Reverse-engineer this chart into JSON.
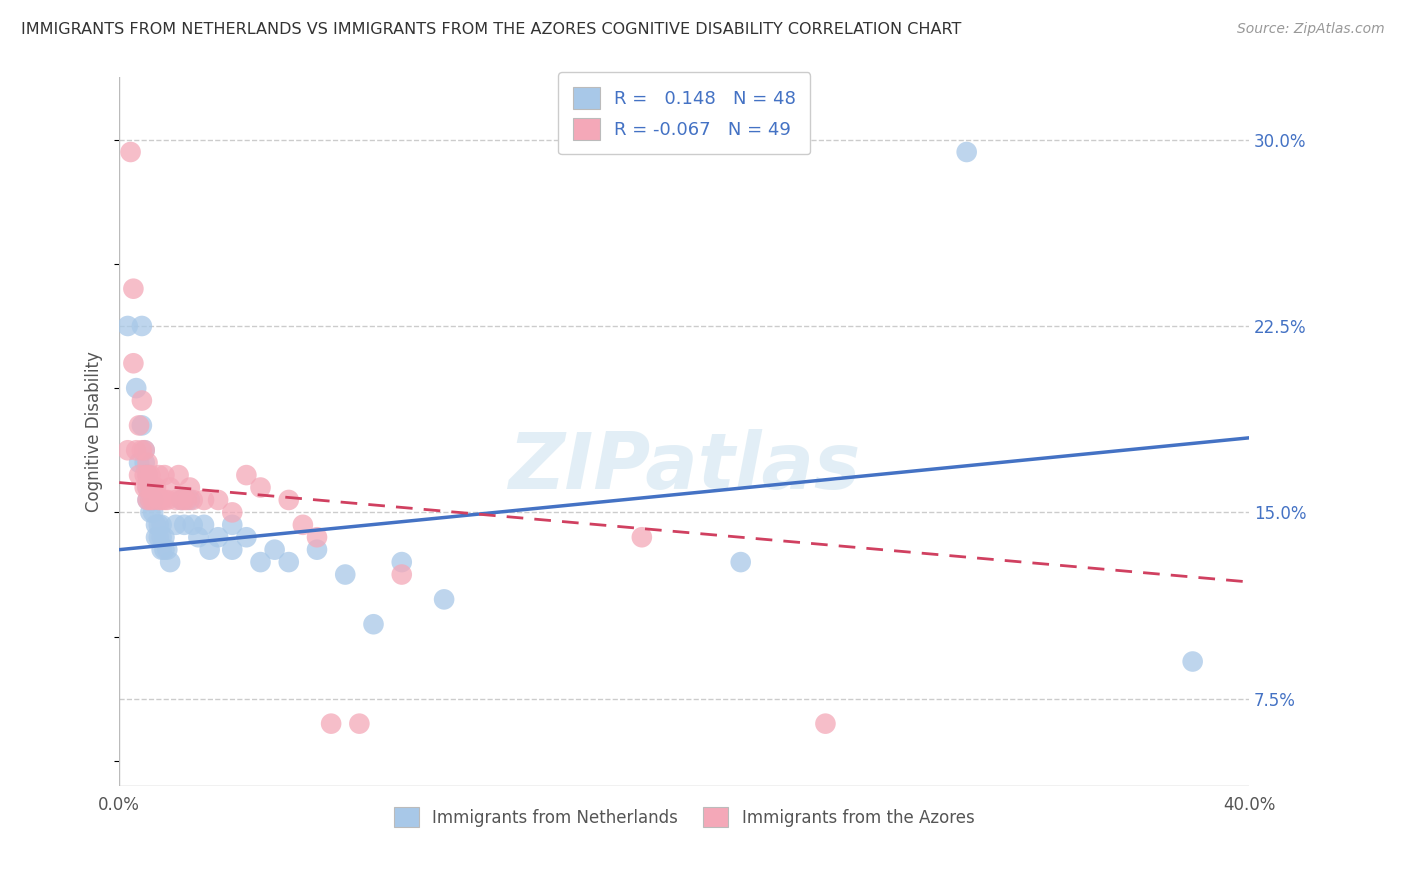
{
  "title": "IMMIGRANTS FROM NETHERLANDS VS IMMIGRANTS FROM THE AZORES COGNITIVE DISABILITY CORRELATION CHART",
  "source": "Source: ZipAtlas.com",
  "ylabel": "Cognitive Disability",
  "y_ticks": [
    0.075,
    0.15,
    0.225,
    0.3
  ],
  "y_tick_labels": [
    "7.5%",
    "15.0%",
    "22.5%",
    "30.0%"
  ],
  "legend_blue_r": "0.148",
  "legend_blue_n": "48",
  "legend_pink_r": "-0.067",
  "legend_pink_n": "49",
  "blue_color": "#a8c8e8",
  "pink_color": "#f4a8b8",
  "blue_line_color": "#4472c4",
  "pink_line_color": "#d04060",
  "legend_label_blue": "Immigrants from Netherlands",
  "legend_label_pink": "Immigrants from the Azores",
  "blue_scatter": [
    [
      0.003,
      0.225
    ],
    [
      0.006,
      0.2
    ],
    [
      0.007,
      0.17
    ],
    [
      0.008,
      0.225
    ],
    [
      0.008,
      0.185
    ],
    [
      0.009,
      0.175
    ],
    [
      0.009,
      0.17
    ],
    [
      0.01,
      0.165
    ],
    [
      0.01,
      0.16
    ],
    [
      0.01,
      0.155
    ],
    [
      0.011,
      0.155
    ],
    [
      0.011,
      0.15
    ],
    [
      0.012,
      0.155
    ],
    [
      0.012,
      0.15
    ],
    [
      0.013,
      0.145
    ],
    [
      0.013,
      0.14
    ],
    [
      0.014,
      0.145
    ],
    [
      0.014,
      0.14
    ],
    [
      0.015,
      0.145
    ],
    [
      0.015,
      0.14
    ],
    [
      0.015,
      0.135
    ],
    [
      0.016,
      0.14
    ],
    [
      0.016,
      0.135
    ],
    [
      0.017,
      0.135
    ],
    [
      0.018,
      0.13
    ],
    [
      0.02,
      0.145
    ],
    [
      0.022,
      0.155
    ],
    [
      0.023,
      0.145
    ],
    [
      0.025,
      0.155
    ],
    [
      0.026,
      0.145
    ],
    [
      0.028,
      0.14
    ],
    [
      0.03,
      0.145
    ],
    [
      0.032,
      0.135
    ],
    [
      0.035,
      0.14
    ],
    [
      0.04,
      0.145
    ],
    [
      0.04,
      0.135
    ],
    [
      0.045,
      0.14
    ],
    [
      0.05,
      0.13
    ],
    [
      0.055,
      0.135
    ],
    [
      0.06,
      0.13
    ],
    [
      0.07,
      0.135
    ],
    [
      0.08,
      0.125
    ],
    [
      0.09,
      0.105
    ],
    [
      0.1,
      0.13
    ],
    [
      0.115,
      0.115
    ],
    [
      0.22,
      0.13
    ],
    [
      0.3,
      0.295
    ],
    [
      0.38,
      0.09
    ]
  ],
  "pink_scatter": [
    [
      0.003,
      0.175
    ],
    [
      0.004,
      0.295
    ],
    [
      0.005,
      0.21
    ],
    [
      0.005,
      0.24
    ],
    [
      0.006,
      0.175
    ],
    [
      0.007,
      0.185
    ],
    [
      0.007,
      0.165
    ],
    [
      0.008,
      0.195
    ],
    [
      0.008,
      0.175
    ],
    [
      0.009,
      0.175
    ],
    [
      0.009,
      0.165
    ],
    [
      0.009,
      0.16
    ],
    [
      0.01,
      0.17
    ],
    [
      0.01,
      0.165
    ],
    [
      0.01,
      0.16
    ],
    [
      0.01,
      0.155
    ],
    [
      0.011,
      0.165
    ],
    [
      0.011,
      0.16
    ],
    [
      0.011,
      0.155
    ],
    [
      0.012,
      0.16
    ],
    [
      0.012,
      0.155
    ],
    [
      0.013,
      0.16
    ],
    [
      0.014,
      0.155
    ],
    [
      0.014,
      0.165
    ],
    [
      0.015,
      0.155
    ],
    [
      0.016,
      0.155
    ],
    [
      0.016,
      0.165
    ],
    [
      0.017,
      0.155
    ],
    [
      0.018,
      0.16
    ],
    [
      0.02,
      0.155
    ],
    [
      0.021,
      0.165
    ],
    [
      0.022,
      0.155
    ],
    [
      0.023,
      0.155
    ],
    [
      0.024,
      0.155
    ],
    [
      0.025,
      0.16
    ],
    [
      0.026,
      0.155
    ],
    [
      0.03,
      0.155
    ],
    [
      0.035,
      0.155
    ],
    [
      0.04,
      0.15
    ],
    [
      0.045,
      0.165
    ],
    [
      0.05,
      0.16
    ],
    [
      0.06,
      0.155
    ],
    [
      0.065,
      0.145
    ],
    [
      0.07,
      0.14
    ],
    [
      0.075,
      0.065
    ],
    [
      0.085,
      0.065
    ],
    [
      0.1,
      0.125
    ],
    [
      0.185,
      0.14
    ],
    [
      0.25,
      0.065
    ]
  ],
  "xlim": [
    0.0,
    0.4
  ],
  "ylim": [
    0.04,
    0.325
  ],
  "blue_line_x": [
    0.0,
    0.4
  ],
  "blue_line_y": [
    0.135,
    0.18
  ],
  "pink_line_x": [
    0.0,
    0.4
  ],
  "pink_line_y": [
    0.162,
    0.122
  ],
  "watermark": "ZIPatlas",
  "background_color": "#ffffff",
  "grid_color": "#cccccc"
}
